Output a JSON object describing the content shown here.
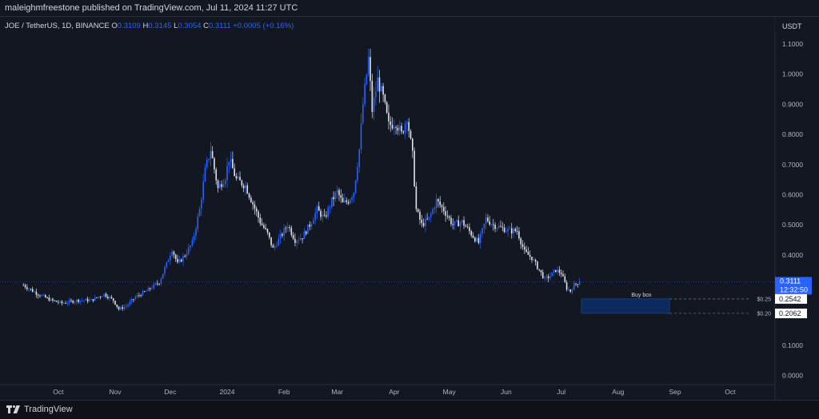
{
  "header": {
    "published_text": "maleighmfreestone published on TradingView.com, Jul 11, 2024 11:27 UTC"
  },
  "legend": {
    "symbol": "JOE / TetherUS, 1D, BINANCE",
    "o_label": "O",
    "o_value": "0.3109",
    "h_label": "H",
    "h_value": "0.3145",
    "l_label": "L",
    "l_value": "0.3054",
    "c_label": "C",
    "c_value": "0.3111",
    "change": "+0.0005 (+0.16%)"
  },
  "price_scale": {
    "currency": "USDT",
    "last_price": "0.3111",
    "countdown": "12:32:50",
    "label_upper": "0.2542",
    "label_lower": "0.2062",
    "level_upper": "$0.25",
    "level_lower": "$0.20"
  },
  "annotation": {
    "buy_box": "Buy box"
  },
  "footer": {
    "brand": "TradingView"
  },
  "colors": {
    "background": "#131722",
    "up_candle": "#2962ff",
    "down_candle": "#e0e3eb",
    "buy_box": "#0d2a5e",
    "last_price_tag": "#2962ff"
  },
  "chart_data": {
    "type": "candlestick",
    "title": "JOE / TetherUS, 1D, BINANCE",
    "x_tick_labels": [
      "Oct",
      "Nov",
      "Dec",
      "2024",
      "Feb",
      "Mar",
      "Apr",
      "May",
      "Jun",
      "Jul",
      "Aug",
      "Sep",
      "Oct"
    ],
    "y_tick_labels": [
      "1.1000",
      "1.0000",
      "0.9000",
      "0.8000",
      "0.7000",
      "0.6000",
      "0.5000",
      "0.4000",
      "0.3000",
      "0.2000",
      "0.1000",
      "0.0000"
    ],
    "ylim": [
      -0.03,
      1.19
    ],
    "close_path": [
      {
        "x": "2023-09-12",
        "y": 0.3
      },
      {
        "x": "2023-09-20",
        "y": 0.27
      },
      {
        "x": "2023-09-27",
        "y": 0.25
      },
      {
        "x": "2023-10-03",
        "y": 0.24
      },
      {
        "x": "2023-10-12",
        "y": 0.25
      },
      {
        "x": "2023-10-19",
        "y": 0.25
      },
      {
        "x": "2023-10-26",
        "y": 0.27
      },
      {
        "x": "2023-10-31",
        "y": 0.25
      },
      {
        "x": "2023-11-03",
        "y": 0.22
      },
      {
        "x": "2023-11-07",
        "y": 0.23
      },
      {
        "x": "2023-11-12",
        "y": 0.26
      },
      {
        "x": "2023-11-18",
        "y": 0.28
      },
      {
        "x": "2023-11-25",
        "y": 0.31
      },
      {
        "x": "2023-11-29",
        "y": 0.37
      },
      {
        "x": "2023-12-02",
        "y": 0.42
      },
      {
        "x": "2023-12-05",
        "y": 0.37
      },
      {
        "x": "2023-12-09",
        "y": 0.4
      },
      {
        "x": "2023-12-13",
        "y": 0.44
      },
      {
        "x": "2023-12-17",
        "y": 0.55
      },
      {
        "x": "2023-12-20",
        "y": 0.68
      },
      {
        "x": "2023-12-23",
        "y": 0.75
      },
      {
        "x": "2023-12-27",
        "y": 0.62
      },
      {
        "x": "2023-12-31",
        "y": 0.66
      },
      {
        "x": "2024-01-02",
        "y": 0.72
      },
      {
        "x": "2024-01-06",
        "y": 0.65
      },
      {
        "x": "2024-01-11",
        "y": 0.63
      },
      {
        "x": "2024-01-15",
        "y": 0.57
      },
      {
        "x": "2024-01-19",
        "y": 0.51
      },
      {
        "x": "2024-01-23",
        "y": 0.47
      },
      {
        "x": "2024-01-26",
        "y": 0.42
      },
      {
        "x": "2024-01-30",
        "y": 0.46
      },
      {
        "x": "2024-02-03",
        "y": 0.5
      },
      {
        "x": "2024-02-07",
        "y": 0.45
      },
      {
        "x": "2024-02-11",
        "y": 0.46
      },
      {
        "x": "2024-02-15",
        "y": 0.5
      },
      {
        "x": "2024-02-19",
        "y": 0.55
      },
      {
        "x": "2024-02-23",
        "y": 0.52
      },
      {
        "x": "2024-02-27",
        "y": 0.58
      },
      {
        "x": "2024-03-01",
        "y": 0.61
      },
      {
        "x": "2024-03-04",
        "y": 0.57
      },
      {
        "x": "2024-03-07",
        "y": 0.58
      },
      {
        "x": "2024-03-10",
        "y": 0.61
      },
      {
        "x": "2024-03-13",
        "y": 0.75
      },
      {
        "x": "2024-03-15",
        "y": 0.9
      },
      {
        "x": "2024-03-18",
        "y": 1.05
      },
      {
        "x": "2024-03-20",
        "y": 0.88
      },
      {
        "x": "2024-03-23",
        "y": 0.98
      },
      {
        "x": "2024-03-26",
        "y": 0.92
      },
      {
        "x": "2024-03-29",
        "y": 0.83
      },
      {
        "x": "2024-04-02",
        "y": 0.84
      },
      {
        "x": "2024-04-05",
        "y": 0.8
      },
      {
        "x": "2024-04-08",
        "y": 0.86
      },
      {
        "x": "2024-04-11",
        "y": 0.73
      },
      {
        "x": "2024-04-13",
        "y": 0.55
      },
      {
        "x": "2024-04-16",
        "y": 0.5
      },
      {
        "x": "2024-04-20",
        "y": 0.52
      },
      {
        "x": "2024-04-24",
        "y": 0.58
      },
      {
        "x": "2024-04-28",
        "y": 0.55
      },
      {
        "x": "2024-05-03",
        "y": 0.5
      },
      {
        "x": "2024-05-08",
        "y": 0.51
      },
      {
        "x": "2024-05-13",
        "y": 0.47
      },
      {
        "x": "2024-05-17",
        "y": 0.44
      },
      {
        "x": "2024-05-21",
        "y": 0.52
      },
      {
        "x": "2024-05-25",
        "y": 0.5
      },
      {
        "x": "2024-05-29",
        "y": 0.49
      },
      {
        "x": "2024-06-03",
        "y": 0.48
      },
      {
        "x": "2024-06-07",
        "y": 0.48
      },
      {
        "x": "2024-06-11",
        "y": 0.41
      },
      {
        "x": "2024-06-15",
        "y": 0.39
      },
      {
        "x": "2024-06-19",
        "y": 0.35
      },
      {
        "x": "2024-06-22",
        "y": 0.32
      },
      {
        "x": "2024-06-25",
        "y": 0.33
      },
      {
        "x": "2024-06-28",
        "y": 0.35
      },
      {
        "x": "2024-07-01",
        "y": 0.34
      },
      {
        "x": "2024-07-04",
        "y": 0.29
      },
      {
        "x": "2024-07-06",
        "y": 0.28
      },
      {
        "x": "2024-07-08",
        "y": 0.3
      },
      {
        "x": "2024-07-11",
        "y": 0.3111
      }
    ],
    "buy_box": {
      "label": "Buy box",
      "y_range": [
        0.2062,
        0.2542
      ],
      "x_range": [
        "2024-07-12",
        "2024-08-29"
      ]
    },
    "last_price": 0.3111,
    "grid": false
  }
}
